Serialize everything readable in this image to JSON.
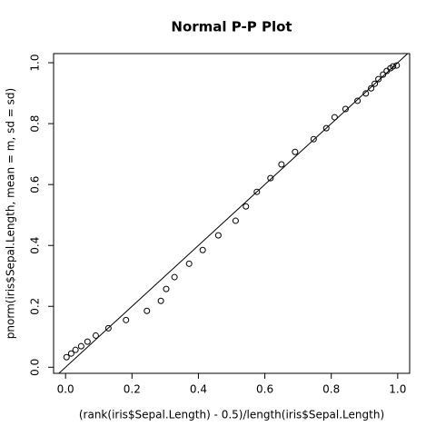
{
  "chart_data": {
    "type": "scatter",
    "title": "Normal P-P Plot",
    "xlabel": "(rank(iris$Sepal.Length) - 0.5)/length(iris$Sepal.Length)",
    "ylabel": "pnorm(iris$Sepal.Length, mean = m, sd = sd)",
    "x": [
      0.003,
      0.017,
      0.03,
      0.047,
      0.066,
      0.091,
      0.129,
      0.182,
      0.245,
      0.287,
      0.303,
      0.328,
      0.372,
      0.413,
      0.46,
      0.512,
      0.543,
      0.576,
      0.617,
      0.65,
      0.691,
      0.747,
      0.785,
      0.81,
      0.843,
      0.879,
      0.904,
      0.92,
      0.931,
      0.942,
      0.956,
      0.967,
      0.978,
      0.986,
      0.997
    ],
    "values": [
      0.033,
      0.045,
      0.057,
      0.069,
      0.084,
      0.104,
      0.128,
      0.155,
      0.185,
      0.218,
      0.257,
      0.296,
      0.34,
      0.385,
      0.433,
      0.481,
      0.528,
      0.576,
      0.621,
      0.666,
      0.707,
      0.749,
      0.785,
      0.821,
      0.848,
      0.875,
      0.899,
      0.916,
      0.931,
      0.946,
      0.961,
      0.973,
      0.982,
      0.988,
      0.991
    ],
    "color": "#000000",
    "reference_line": true,
    "xlim": [
      -0.036,
      1.036
    ],
    "ylim": [
      -0.02,
      1.03
    ],
    "xticks": [
      {
        "value": 0,
        "label": "0.0"
      },
      0.2,
      0.4,
      0.6,
      0.8,
      {
        "value": 1,
        "label": "1.0"
      }
    ],
    "yticks": [
      {
        "value": 0,
        "label": "0.0"
      },
      0.2,
      0.4,
      0.6,
      0.8,
      {
        "value": 1,
        "label": "1.0"
      }
    ]
  }
}
